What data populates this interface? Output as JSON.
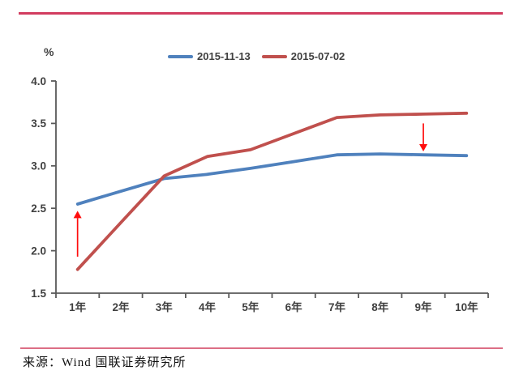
{
  "header": {
    "top_rule_color": "#d23c5f"
  },
  "chart_data": {
    "type": "line",
    "title": "",
    "unit_label": "%",
    "xlabel": "",
    "ylabel": "%",
    "categories": [
      "1年",
      "2年",
      "3年",
      "4年",
      "5年",
      "6年",
      "7年",
      "8年",
      "9年",
      "10年"
    ],
    "series": [
      {
        "name": "2015-11-13",
        "color": "#4F81BD",
        "values": [
          2.55,
          2.7,
          2.85,
          2.9,
          2.97,
          3.05,
          3.13,
          3.14,
          3.13,
          3.12
        ]
      },
      {
        "name": "2015-07-02",
        "color": "#C0504D",
        "values": [
          1.78,
          2.33,
          2.88,
          3.11,
          3.19,
          3.38,
          3.57,
          3.6,
          3.61,
          3.62
        ]
      }
    ],
    "ylim": [
      1.5,
      4.0
    ],
    "yticks": [
      1.5,
      2.0,
      2.5,
      3.0,
      3.5,
      4.0
    ],
    "grid": false,
    "legend_position": "top",
    "axis_color": "#595959",
    "label_color": "#404040",
    "annotations": [
      {
        "type": "arrow",
        "direction": "up",
        "x_category": "1年",
        "from_value": 1.93,
        "to_value": 2.47,
        "color": "#FF0D0D"
      },
      {
        "type": "arrow",
        "direction": "down",
        "x_category": "9年",
        "from_value": 3.5,
        "to_value": 3.17,
        "color": "#FF0D0D"
      }
    ]
  },
  "footer": {
    "bottom_rule_color": "#dc6e85",
    "source_label": "来源：Wind 国联证券研究所"
  }
}
